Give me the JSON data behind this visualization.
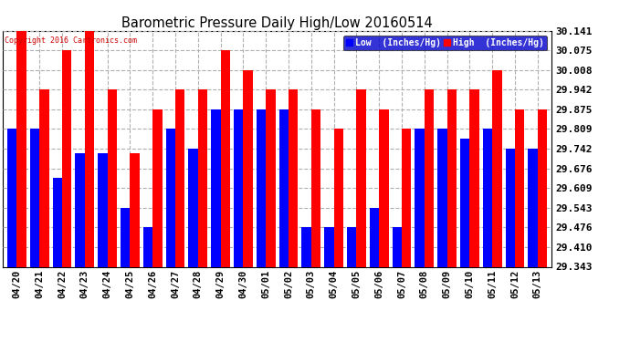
{
  "title": "Barometric Pressure Daily High/Low 20160514",
  "copyright": "Copyright 2016 Cartronics.com",
  "dates": [
    "04/20",
    "04/21",
    "04/22",
    "04/23",
    "04/24",
    "04/25",
    "04/26",
    "04/27",
    "04/28",
    "04/29",
    "04/30",
    "05/01",
    "05/02",
    "05/03",
    "05/04",
    "05/05",
    "05/06",
    "05/07",
    "05/08",
    "05/09",
    "05/10",
    "05/11",
    "05/12",
    "05/13"
  ],
  "low": [
    29.809,
    29.809,
    29.643,
    29.726,
    29.726,
    29.543,
    29.476,
    29.809,
    29.743,
    29.875,
    29.875,
    29.875,
    29.875,
    29.476,
    29.476,
    29.476,
    29.543,
    29.476,
    29.809,
    29.809,
    29.776,
    29.809,
    29.742,
    29.742
  ],
  "high": [
    30.141,
    29.942,
    30.075,
    30.141,
    29.942,
    29.726,
    29.875,
    29.942,
    29.942,
    30.075,
    30.008,
    29.942,
    29.942,
    29.875,
    29.809,
    29.942,
    29.875,
    29.809,
    29.942,
    29.942,
    29.942,
    30.008,
    29.875,
    29.875
  ],
  "ymin": 29.343,
  "ymax": 30.141,
  "yticks": [
    29.343,
    29.41,
    29.476,
    29.543,
    29.609,
    29.676,
    29.742,
    29.809,
    29.875,
    29.942,
    30.008,
    30.075,
    30.141
  ],
  "low_color": "#0000ff",
  "high_color": "#ff0000",
  "bg_color": "#ffffff",
  "grid_color": "#b0b0b0",
  "bar_width": 0.42,
  "legend_low_label": "Low  (Inches/Hg)",
  "legend_high_label": "High  (Inches/Hg)"
}
